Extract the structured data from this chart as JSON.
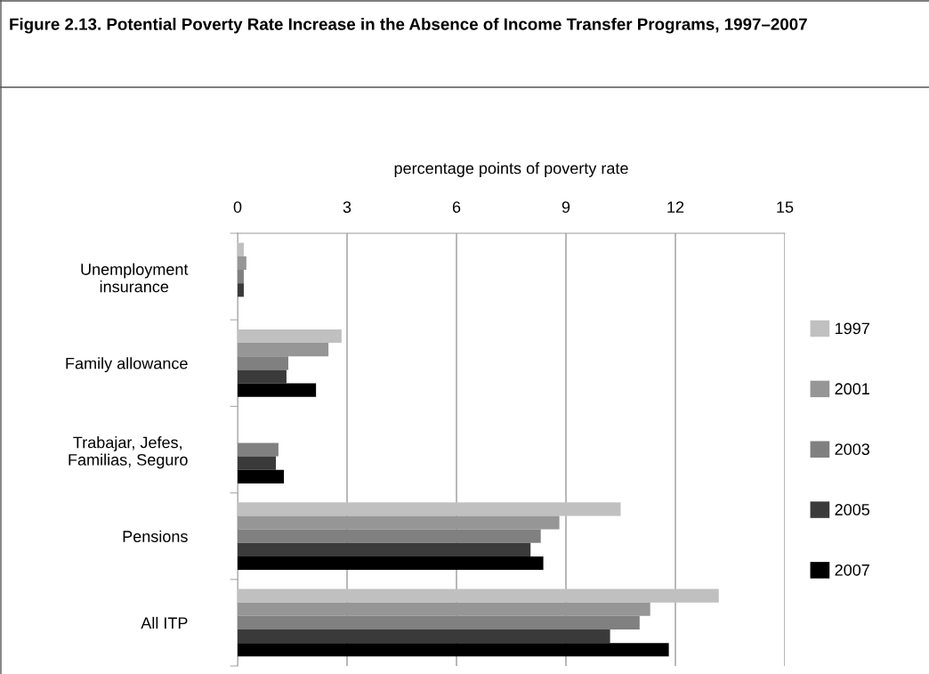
{
  "chart_data": {
    "type": "bar",
    "orientation": "horizontal",
    "title": "Figure 2.13. Potential Poverty Rate Increase in the Absence of Income Transfer Programs, 1997–2007",
    "xlabel": "percentage points of poverty rate",
    "categories": [
      "Unemployment insurance",
      "Family allowance",
      "Trabajar, Jefes, Familias, Seguro",
      "Pensions",
      "All ITP"
    ],
    "series": [
      {
        "name": "1997",
        "color": "#c0c0c0",
        "values": [
          0.17,
          2.85,
          null,
          10.5,
          13.19
        ]
      },
      {
        "name": "2001",
        "color": "#969696",
        "values": [
          0.24,
          2.49,
          null,
          8.82,
          11.31
        ]
      },
      {
        "name": "2003",
        "color": "#808080",
        "values": [
          0.17,
          1.39,
          1.12,
          8.31,
          11.02
        ]
      },
      {
        "name": "2005",
        "color": "#3a3a3a",
        "values": [
          0.17,
          1.34,
          1.05,
          8.03,
          10.21
        ]
      },
      {
        "name": "2007",
        "color": "#000000",
        "values": [
          null,
          2.15,
          1.27,
          8.38,
          11.82
        ]
      }
    ],
    "xlim": [
      0,
      15
    ],
    "xticks": [
      0,
      3,
      6,
      9,
      12,
      15
    ],
    "grid": "x",
    "legend": "right"
  }
}
